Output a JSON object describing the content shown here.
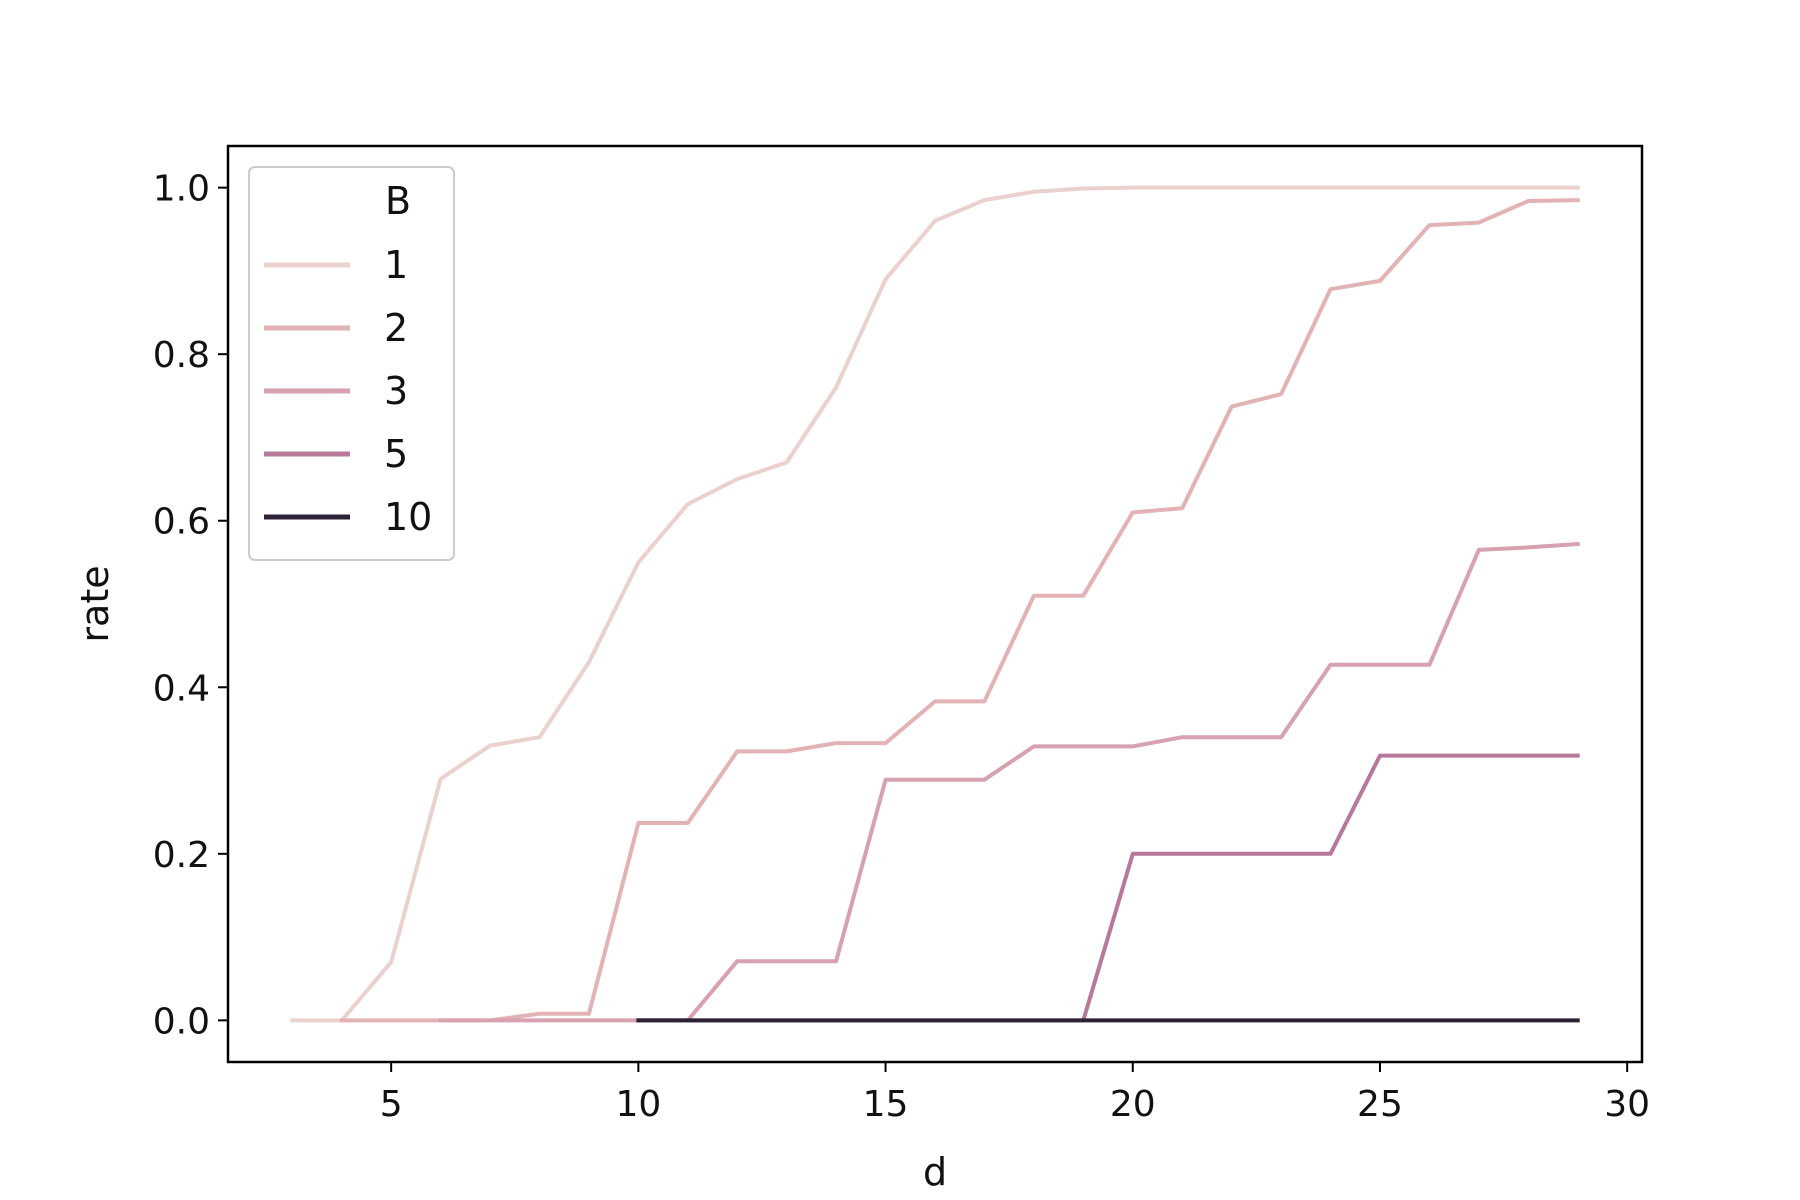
{
  "chart_data": {
    "type": "line",
    "title": "",
    "xlabel": "d",
    "ylabel": "rate",
    "xlim": [
      1.7,
      30.3
    ],
    "ylim": [
      -0.05,
      1.05
    ],
    "xticks": [
      5,
      10,
      15,
      20,
      25,
      30
    ],
    "yticks": [
      0.0,
      0.2,
      0.4,
      0.6,
      0.8,
      1.0
    ],
    "xtick_labels": [
      "5",
      "10",
      "15",
      "20",
      "25",
      "30"
    ],
    "ytick_labels": [
      "0.0",
      "0.2",
      "0.4",
      "0.6",
      "0.8",
      "1.0"
    ],
    "grid": false,
    "legend": {
      "title": "B",
      "placement": "upper-left"
    },
    "series": [
      {
        "name": "1",
        "color": "#ebd1cd",
        "x": [
          3,
          4,
          5,
          6,
          7,
          8,
          9,
          10,
          11,
          12,
          13,
          14,
          15,
          16,
          17,
          18,
          19,
          20,
          21,
          22,
          23,
          24,
          25,
          26,
          27,
          28,
          29
        ],
        "values": [
          0.0,
          0.0,
          0.07,
          0.29,
          0.33,
          0.34,
          0.43,
          0.55,
          0.62,
          0.65,
          0.67,
          0.76,
          0.89,
          0.96,
          0.985,
          0.995,
          0.999,
          1.0,
          1.0,
          1.0,
          1.0,
          1.0,
          1.0,
          1.0,
          1.0,
          1.0,
          1.0
        ]
      },
      {
        "name": "2",
        "color": "#e2b2b5",
        "x": [
          4,
          5,
          6,
          7,
          8,
          9,
          10,
          11,
          12,
          13,
          14,
          15,
          16,
          17,
          18,
          19,
          20,
          21,
          22,
          23,
          24,
          25,
          26,
          27,
          28,
          29
        ],
        "values": [
          0.0,
          0.0,
          0.0,
          0.0,
          0.008,
          0.008,
          0.237,
          0.237,
          0.323,
          0.323,
          0.333,
          0.333,
          0.383,
          0.383,
          0.51,
          0.51,
          0.61,
          0.615,
          0.737,
          0.752,
          0.878,
          0.888,
          0.955,
          0.958,
          0.984,
          0.985
        ]
      },
      {
        "name": "3",
        "color": "#d7a1af",
        "x": [
          6,
          7,
          8,
          9,
          10,
          11,
          12,
          13,
          14,
          15,
          16,
          17,
          18,
          19,
          20,
          21,
          22,
          23,
          24,
          25,
          26,
          27,
          28,
          29
        ],
        "values": [
          0.0,
          0.0,
          0.0,
          0.0,
          0.0,
          0.0,
          0.071,
          0.071,
          0.071,
          0.289,
          0.289,
          0.289,
          0.329,
          0.329,
          0.329,
          0.34,
          0.34,
          0.34,
          0.427,
          0.427,
          0.427,
          0.565,
          0.568,
          0.572
        ]
      },
      {
        "name": "5",
        "color": "#b77899",
        "x": [
          10,
          11,
          12,
          13,
          14,
          15,
          16,
          17,
          18,
          19,
          20,
          21,
          22,
          23,
          24,
          25,
          26,
          27,
          28,
          29
        ],
        "values": [
          0.0,
          0.0,
          0.0,
          0.0,
          0.0,
          0.0,
          0.0,
          0.0,
          0.0,
          0.0,
          0.2,
          0.2,
          0.2,
          0.2,
          0.2,
          0.318,
          0.318,
          0.318,
          0.318,
          0.318
        ]
      },
      {
        "name": "10",
        "color": "#2d2138",
        "x": [
          10,
          11,
          12,
          13,
          14,
          15,
          16,
          17,
          18,
          19,
          20,
          21,
          22,
          23,
          24,
          25,
          26,
          27,
          28,
          29
        ],
        "values": [
          0.0,
          0.0,
          0.0,
          0.0,
          0.0,
          0.0,
          0.0,
          0.0,
          0.0,
          0.0,
          0.0,
          0.0,
          0.0,
          0.0,
          0.0,
          0.0,
          0.0,
          0.0,
          0.0,
          0.0
        ]
      }
    ]
  }
}
